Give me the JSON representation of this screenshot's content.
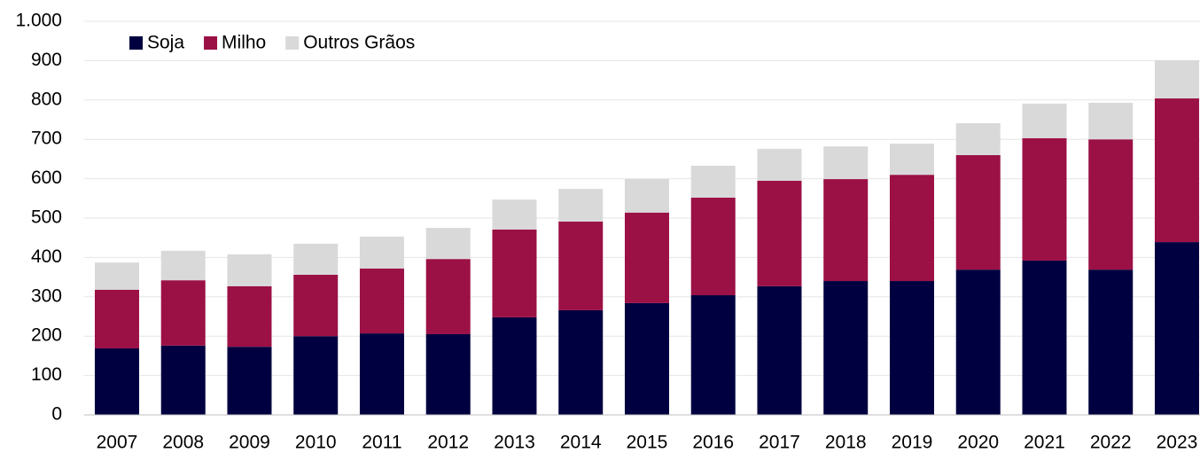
{
  "chart_data": {
    "type": "stacked_bar",
    "categories": [
      "2007",
      "2008",
      "2009",
      "2010",
      "2011",
      "2012",
      "2013",
      "2014",
      "2015",
      "2016",
      "2017",
      "2018",
      "2019",
      "2020",
      "2021",
      "2022",
      "2023"
    ],
    "series": [
      {
        "name": "Soja",
        "color": "#000040",
        "values": [
          169,
          176,
          173,
          200,
          207,
          205,
          248,
          266,
          284,
          304,
          327,
          340,
          340,
          369,
          392,
          369,
          439
        ]
      },
      {
        "name": "Milho",
        "color": "#9b1045",
        "values": [
          149,
          166,
          154,
          156,
          165,
          191,
          223,
          225,
          230,
          248,
          268,
          259,
          270,
          291,
          311,
          331,
          365
        ]
      },
      {
        "name": "Outros Grãos",
        "color": "#d9d9d9",
        "values": [
          69,
          75,
          81,
          79,
          81,
          79,
          76,
          83,
          85,
          81,
          81,
          83,
          79,
          81,
          88,
          93,
          97
        ]
      }
    ],
    "ylim": [
      0,
      1000
    ],
    "yticks": [
      0,
      100,
      200,
      300,
      400,
      500,
      600,
      700,
      800,
      900,
      {
        "value": 1000,
        "label": "1.000"
      }
    ],
    "grid": true,
    "legend": "top-left"
  }
}
